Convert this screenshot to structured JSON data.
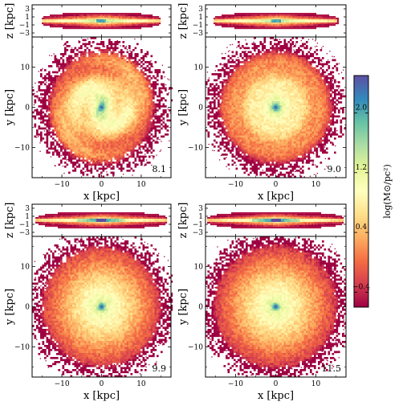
{
  "chart_data": {
    "type": "heatmap",
    "colormap": "Spectral_r",
    "colorbar": {
      "label": "log(M⊙/pc²)",
      "range": [
        -0.6,
        2.5
      ],
      "ticks": [
        -0.4,
        0.4,
        1.2,
        2.0
      ],
      "tick_labels": [
        "−0.4",
        "0.4",
        "1.2",
        "2.0"
      ]
    },
    "axis_labels": {
      "face_on_x": "x [kpc]",
      "face_on_y": "y [kpc]",
      "edge_on_y": "z [kpc]"
    },
    "face_on_axes": {
      "xlim": [
        -17.5,
        17.5
      ],
      "ylim": [
        -17.5,
        17.5
      ],
      "xticks": [
        -10,
        0,
        10
      ],
      "yticks": [
        -10,
        0,
        10
      ],
      "tick_labels": [
        "−10",
        "0",
        "10"
      ]
    },
    "edge_on_axes": {
      "ylim": [
        -4,
        4
      ],
      "yticks": [
        -3,
        -1,
        1,
        3
      ],
      "tick_labels": [
        "−3",
        "−1",
        "1",
        "3"
      ]
    },
    "panels": [
      {
        "label": "8.1",
        "spiral": true,
        "rings": true,
        "disk_radius": 13,
        "thin_disk_center": false
      },
      {
        "label": "9.0",
        "spiral": false,
        "rings": true,
        "disk_radius": 13.5,
        "thin_disk_center": false
      },
      {
        "label": "9.9",
        "spiral": false,
        "rings": false,
        "disk_radius": 14.5,
        "thin_disk_center": true
      },
      {
        "label": "11.5",
        "spiral": false,
        "rings": false,
        "disk_radius": 15,
        "thin_disk_center": true
      }
    ]
  }
}
